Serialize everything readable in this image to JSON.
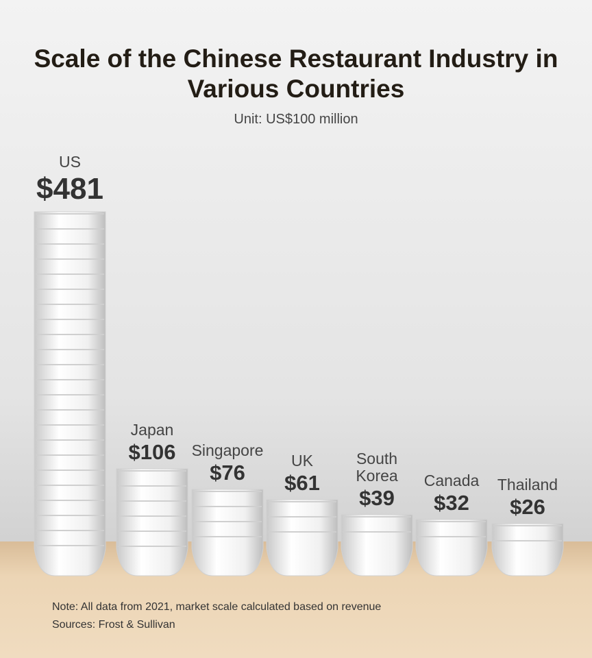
{
  "chart_data": {
    "type": "bowl-stack",
    "title": "Scale of the Chinese Restaurant Industry in Various Countries",
    "subtitle": "Unit:  US$100 million",
    "categories": [
      "US",
      "Japan",
      "Singapore",
      "UK",
      "South Korea",
      "Canada",
      "Thailand"
    ],
    "values": [
      481,
      106,
      76,
      61,
      39,
      32,
      26
    ],
    "value_labels": [
      "$481",
      "$106",
      "$76",
      "$61",
      "$39",
      "$32",
      "$26"
    ],
    "color": "#f4f4f4",
    "note": "Note: All data from 2021, market scale calculated based on revenue",
    "source": "Sources: Frost & Sullivan"
  }
}
